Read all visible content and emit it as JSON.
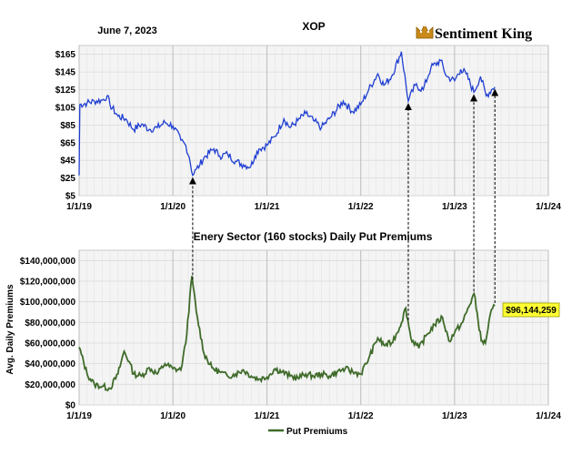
{
  "header": {
    "date": "June 7, 2023",
    "ticker": "XOP",
    "brand": "Sentiment King"
  },
  "chart_data": [
    {
      "type": "line",
      "title": "XOP",
      "series": [
        {
          "color": "#1f3fd1",
          "points": [
            [
              "2019-01-01",
              28
            ],
            [
              "2019-01-04",
              108
            ],
            [
              "2019-02-01",
              110
            ],
            [
              "2019-03-01",
              112
            ],
            [
              "2019-04-01",
              113
            ],
            [
              "2019-04-20",
              118
            ],
            [
              "2019-05-01",
              108
            ],
            [
              "2019-06-01",
              95
            ],
            [
              "2019-07-01",
              92
            ],
            [
              "2019-08-01",
              80
            ],
            [
              "2019-09-01",
              86
            ],
            [
              "2019-10-01",
              80
            ],
            [
              "2019-11-01",
              82
            ],
            [
              "2019-12-01",
              88
            ],
            [
              "2020-01-01",
              84
            ],
            [
              "2020-02-01",
              68
            ],
            [
              "2020-02-20",
              62
            ],
            [
              "2020-03-05",
              48
            ],
            [
              "2020-03-18",
              28
            ],
            [
              "2020-04-01",
              35
            ],
            [
              "2020-04-15",
              40
            ],
            [
              "2020-05-01",
              48
            ],
            [
              "2020-06-08",
              58
            ],
            [
              "2020-07-01",
              50
            ],
            [
              "2020-08-01",
              52
            ],
            [
              "2020-09-01",
              44
            ],
            [
              "2020-10-01",
              40
            ],
            [
              "2020-10-30",
              38
            ],
            [
              "2020-11-15",
              50
            ],
            [
              "2020-12-01",
              58
            ],
            [
              "2021-01-01",
              62
            ],
            [
              "2021-02-01",
              72
            ],
            [
              "2021-03-08",
              92
            ],
            [
              "2021-04-01",
              82
            ],
            [
              "2021-05-01",
              90
            ],
            [
              "2021-06-01",
              98
            ],
            [
              "2021-07-01",
              90
            ],
            [
              "2021-08-01",
              82
            ],
            [
              "2021-09-01",
              92
            ],
            [
              "2021-10-25",
              112
            ],
            [
              "2021-12-01",
              100
            ],
            [
              "2022-01-01",
              108
            ],
            [
              "2022-02-01",
              125
            ],
            [
              "2022-03-08",
              143
            ],
            [
              "2022-04-01",
              130
            ],
            [
              "2022-05-01",
              140
            ],
            [
              "2022-06-08",
              168
            ],
            [
              "2022-07-05",
              112
            ],
            [
              "2022-08-01",
              130
            ],
            [
              "2022-09-01",
              125
            ],
            [
              "2022-10-01",
              150
            ],
            [
              "2022-11-08",
              158
            ],
            [
              "2022-12-01",
              140
            ],
            [
              "2023-01-01",
              135
            ],
            [
              "2023-01-25",
              148
            ],
            [
              "2023-02-15",
              143
            ],
            [
              "2023-03-17",
              122
            ],
            [
              "2023-04-12",
              140
            ],
            [
              "2023-05-04",
              118
            ],
            [
              "2023-05-25",
              125
            ],
            [
              "2023-06-07",
              128
            ]
          ]
        }
      ],
      "ylim": [
        5,
        175
      ],
      "yticks": [
        5,
        25,
        45,
        65,
        85,
        105,
        125,
        145,
        165
      ],
      "ytick_labels": [
        "$5",
        "$25",
        "$45",
        "$65",
        "$85",
        "$105",
        "$125",
        "$145",
        "$165"
      ],
      "xlim": [
        "2019-01-01",
        "2024-01-01"
      ],
      "xticks": [
        "2019-01-01",
        "2020-01-01",
        "2021-01-01",
        "2022-01-01",
        "2023-01-01",
        "2024-01-01"
      ],
      "xtick_labels": [
        "1/1/19",
        "1/1/20",
        "1/1/21",
        "1/1/22",
        "1/1/23",
        "1/1/24"
      ],
      "grid": true
    },
    {
      "type": "line",
      "title": "Enery Sector (160 stocks) Daily Put Premiums",
      "ylabel": "Avg. Daily Premiums",
      "series": [
        {
          "name": "Put Premiums",
          "color": "#3f6b2a",
          "points": [
            [
              "2019-01-01",
              56000000
            ],
            [
              "2019-02-01",
              30000000
            ],
            [
              "2019-03-01",
              20000000
            ],
            [
              "2019-04-01",
              18000000
            ],
            [
              "2019-05-01",
              16000000
            ],
            [
              "2019-06-01",
              30000000
            ],
            [
              "2019-06-25",
              52000000
            ],
            [
              "2019-07-15",
              42000000
            ],
            [
              "2019-08-01",
              30000000
            ],
            [
              "2019-09-01",
              28000000
            ],
            [
              "2019-10-01",
              36000000
            ],
            [
              "2019-11-01",
              30000000
            ],
            [
              "2019-12-01",
              40000000
            ],
            [
              "2020-01-01",
              35000000
            ],
            [
              "2020-02-01",
              34000000
            ],
            [
              "2020-02-20",
              60000000
            ],
            [
              "2020-03-15",
              125000000
            ],
            [
              "2020-04-01",
              90000000
            ],
            [
              "2020-05-01",
              50000000
            ],
            [
              "2020-06-01",
              36000000
            ],
            [
              "2020-07-01",
              32000000
            ],
            [
              "2020-08-01",
              28000000
            ],
            [
              "2020-09-01",
              30000000
            ],
            [
              "2020-10-01",
              34000000
            ],
            [
              "2020-11-01",
              28000000
            ],
            [
              "2020-12-01",
              25000000
            ],
            [
              "2021-01-01",
              27000000
            ],
            [
              "2021-02-01",
              35000000
            ],
            [
              "2021-03-01",
              32000000
            ],
            [
              "2021-04-01",
              28000000
            ],
            [
              "2021-05-01",
              26000000
            ],
            [
              "2021-06-01",
              30000000
            ],
            [
              "2021-07-01",
              28000000
            ],
            [
              "2021-08-01",
              30000000
            ],
            [
              "2021-09-01",
              28000000
            ],
            [
              "2021-10-01",
              32000000
            ],
            [
              "2021-11-01",
              35000000
            ],
            [
              "2021-12-01",
              32000000
            ],
            [
              "2022-01-01",
              30000000
            ],
            [
              "2022-02-01",
              45000000
            ],
            [
              "2022-03-08",
              65000000
            ],
            [
              "2022-04-01",
              58000000
            ],
            [
              "2022-05-01",
              60000000
            ],
            [
              "2022-06-01",
              75000000
            ],
            [
              "2022-06-25",
              94000000
            ],
            [
              "2022-07-15",
              65000000
            ],
            [
              "2022-08-15",
              55000000
            ],
            [
              "2022-09-15",
              68000000
            ],
            [
              "2022-10-15",
              78000000
            ],
            [
              "2022-11-15",
              85000000
            ],
            [
              "2022-12-10",
              62000000
            ],
            [
              "2023-01-01",
              70000000
            ],
            [
              "2023-02-01",
              80000000
            ],
            [
              "2023-03-18",
              108000000
            ],
            [
              "2023-04-15",
              62000000
            ],
            [
              "2023-05-01",
              60000000
            ],
            [
              "2023-05-20",
              88000000
            ],
            [
              "2023-06-07",
              96144259
            ]
          ]
        }
      ],
      "last_value_label": "$96,144,259",
      "ylim": [
        0,
        150000000
      ],
      "yticks": [
        0,
        20000000,
        40000000,
        60000000,
        80000000,
        100000000,
        120000000,
        140000000
      ],
      "ytick_labels": [
        "$0",
        "$20,000,000",
        "$40,000,000",
        "$60,000,000",
        "$80,000,000",
        "$100,000,000",
        "$120,000,000",
        "$140,000,000"
      ],
      "xlim": [
        "2019-01-01",
        "2024-01-01"
      ],
      "xticks": [
        "2019-01-01",
        "2020-01-01",
        "2021-01-01",
        "2022-01-01",
        "2023-01-01",
        "2024-01-01"
      ],
      "xtick_labels": [
        "1/1/19",
        "1/1/20",
        "1/1/21",
        "1/1/22",
        "1/1/23",
        "1/1/24"
      ],
      "legend_position": "bottom",
      "grid": true
    }
  ],
  "connectors": [
    "2020-03-18",
    "2022-07-05",
    "2023-03-17",
    "2023-06-07"
  ]
}
